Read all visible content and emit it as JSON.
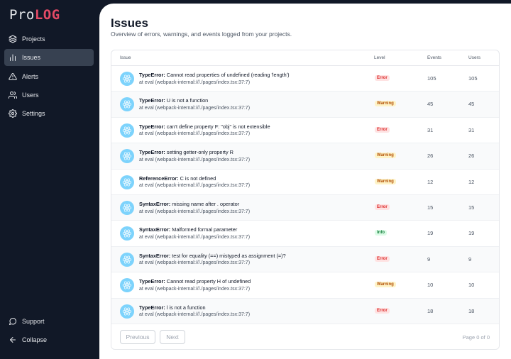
{
  "logo": {
    "part1": "Pro",
    "part2": "LOG"
  },
  "nav": [
    {
      "label": "Projects",
      "icon": "layers-icon",
      "active": false
    },
    {
      "label": "Issues",
      "icon": "bar-chart-icon",
      "active": true
    },
    {
      "label": "Alerts",
      "icon": "alert-triangle-icon",
      "active": false
    },
    {
      "label": "Users",
      "icon": "users-icon",
      "active": false
    },
    {
      "label": "Settings",
      "icon": "gear-icon",
      "active": false
    }
  ],
  "nav_bottom": [
    {
      "label": "Support",
      "icon": "chat-bubble-icon"
    },
    {
      "label": "Collapse",
      "icon": "arrow-left-icon"
    }
  ],
  "page": {
    "title": "Issues",
    "subtitle": "Overview of errors, warnings, and events logged from your projects."
  },
  "table": {
    "headers": {
      "issue": "Issue",
      "level": "Level",
      "events": "Events",
      "users": "Users"
    },
    "rows": [
      {
        "type": "TypeError:",
        "message": "Cannot read properties of undefined (reading 'length')",
        "location": "at eval (webpack-internal:///./pages/index.tsx:37:7)",
        "level": "Error",
        "events": "105",
        "users": "105"
      },
      {
        "type": "TypeError:",
        "message": "U is not a function",
        "location": "at eval (webpack-internal:///./pages/index.tsx:37:7)",
        "level": "Warning",
        "events": "45",
        "users": "45"
      },
      {
        "type": "TypeError:",
        "message": "can't define property F: \"obj\" is not extensible",
        "location": "at eval (webpack-internal:///./pages/index.tsx:37:7)",
        "level": "Error",
        "events": "31",
        "users": "31"
      },
      {
        "type": "TypeError:",
        "message": "setting getter-only property R",
        "location": "at eval (webpack-internal:///./pages/index.tsx:37:7)",
        "level": "Warning",
        "events": "26",
        "users": "26"
      },
      {
        "type": "ReferenceError:",
        "message": "C is not defined",
        "location": "at eval (webpack-internal:///./pages/index.tsx:37:7)",
        "level": "Warning",
        "events": "12",
        "users": "12"
      },
      {
        "type": "SyntaxError:",
        "message": "missing name after . operator",
        "location": "at eval (webpack-internal:///./pages/index.tsx:37:7)",
        "level": "Error",
        "events": "15",
        "users": "15"
      },
      {
        "type": "SyntaxError:",
        "message": "Malformed formal parameter",
        "location": "at eval (webpack-internal:///./pages/index.tsx:37:7)",
        "level": "Info",
        "events": "19",
        "users": "19"
      },
      {
        "type": "SyntaxError:",
        "message": "test for equality (==) mistyped as assignment (=)?",
        "location": "at eval (webpack-internal:///./pages/index.tsx:37:7)",
        "level": "Error",
        "events": "9",
        "users": "9"
      },
      {
        "type": "TypeError:",
        "message": "Cannot read property H of undefined",
        "location": "at eval (webpack-internal:///./pages/index.tsx:37:7)",
        "level": "Warning",
        "events": "10",
        "users": "10"
      },
      {
        "type": "TypeError:",
        "message": "l is not a function",
        "location": "at eval (webpack-internal:///./pages/index.tsx:37:7)",
        "level": "Error",
        "events": "18",
        "users": "18"
      }
    ]
  },
  "pagination": {
    "previous": "Previous",
    "next": "Next",
    "info": "Page 0 of 0"
  },
  "colors": {
    "sidebar_bg": "#111827",
    "active_nav": "#374151",
    "logo_accent": "#e44a66",
    "react_icon": "#7dd3fc"
  }
}
